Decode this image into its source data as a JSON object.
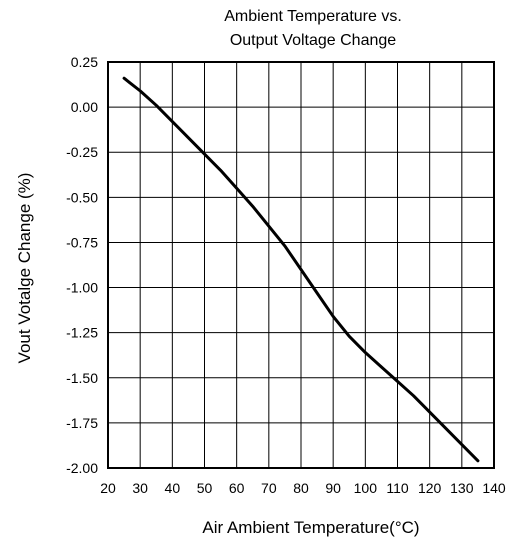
{
  "chart_data": {
    "type": "line",
    "title_lines": [
      "Ambient Temperature vs.",
      "Output Voltage Change"
    ],
    "xlabel": "Air Ambient Temperature(°C)",
    "ylabel": "Vout Votalge Change (%)",
    "xlim": [
      20,
      140
    ],
    "ylim": [
      -2.0,
      0.25
    ],
    "x_ticks": [
      20,
      30,
      40,
      50,
      60,
      70,
      80,
      90,
      100,
      110,
      120,
      130,
      140
    ],
    "x_tick_labels": [
      "20",
      "30",
      "40",
      "50",
      "60",
      "70",
      "80",
      "90",
      "100",
      "110",
      "120",
      "130",
      "140"
    ],
    "y_ticks": [
      0.25,
      0.0,
      -0.25,
      -0.5,
      -0.75,
      -1.0,
      -1.25,
      -1.5,
      -1.75,
      -2.0
    ],
    "y_tick_labels": [
      "0.25",
      "0.00",
      "-0.25",
      "-0.50",
      "-0.75",
      "-1.00",
      "-1.25",
      "-1.50",
      "-1.75",
      "-2.00"
    ],
    "grid": true,
    "series": [
      {
        "color": "#000000",
        "x": [
          25,
          30,
          35,
          40,
          45,
          50,
          55,
          60,
          65,
          70,
          75,
          80,
          85,
          90,
          95,
          100,
          105,
          110,
          115,
          120,
          125,
          130,
          135
        ],
        "y": [
          0.16,
          0.09,
          0.01,
          -0.08,
          -0.17,
          -0.26,
          -0.35,
          -0.45,
          -0.55,
          -0.66,
          -0.77,
          -0.9,
          -1.03,
          -1.16,
          -1.27,
          -1.36,
          -1.44,
          -1.52,
          -1.6,
          -1.69,
          -1.78,
          -1.87,
          -1.96
        ]
      }
    ]
  }
}
